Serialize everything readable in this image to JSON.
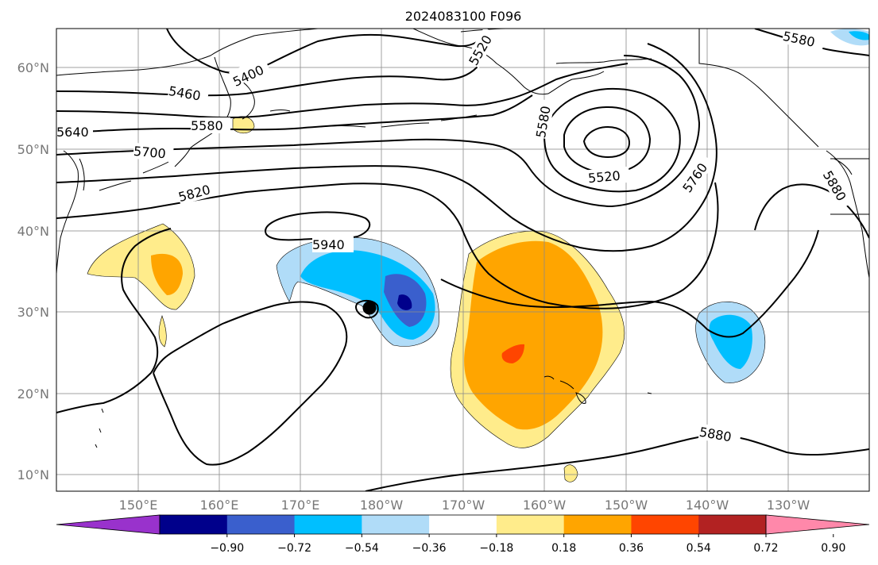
{
  "title": "2024083100 F096",
  "map": {
    "lat_labels": [
      "60°N",
      "50°N",
      "40°N",
      "30°N",
      "20°N",
      "10°N"
    ],
    "lon_labels": [
      "150°E",
      "160°E",
      "170°E",
      "180°W",
      "170°W",
      "160°W",
      "150°W",
      "140°W",
      "130°W"
    ],
    "contour_labels": [
      "5400",
      "5460",
      "5520",
      "5580",
      "5640",
      "5700",
      "5820",
      "5940",
      "5580",
      "5520",
      "5760",
      "5880",
      "5880",
      "5580"
    ],
    "fill_colors": {
      "lt_blue": "#b0dcf8",
      "blue": "#00bfff",
      "mid_blue": "#3a5fcd",
      "navy": "#00008b",
      "yellow": "#ffec8b",
      "orange": "#ffa500",
      "red_orange": "#ff4500"
    }
  },
  "colorbar": {
    "tick_labels": [
      "−0.90",
      "−0.72",
      "−0.54",
      "−0.36",
      "−0.18",
      "0.18",
      "0.36",
      "0.54",
      "0.72",
      "0.90"
    ],
    "colors": [
      "#9932cc",
      "#00008b",
      "#3a5fcd",
      "#00bfff",
      "#b0dcf8",
      "#ffffff",
      "#ffec8b",
      "#ffa500",
      "#ff4500",
      "#b22222",
      "#ff88aa"
    ]
  }
}
